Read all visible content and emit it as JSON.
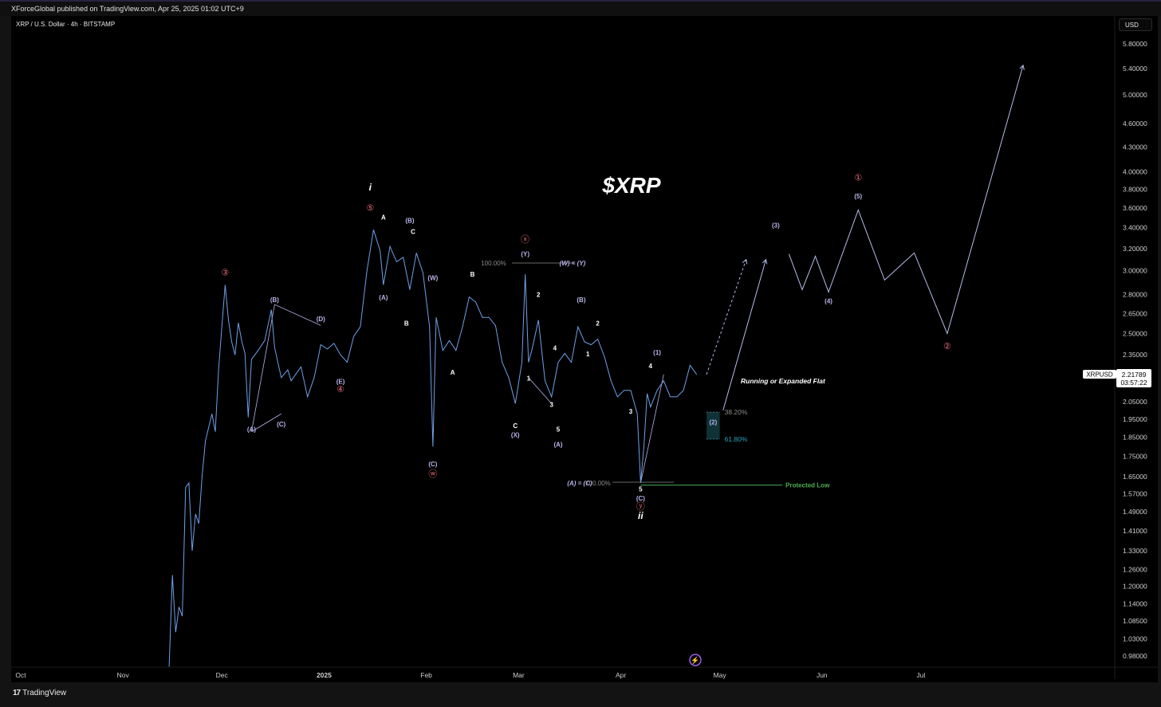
{
  "header": {
    "published": "XForceGlobal published on TradingView.com, Apr 25, 2025 01:02 UTC+9",
    "symbol": "XRP / U.S. Dollar · 4h · BITSTAMP",
    "currency": "USD"
  },
  "footer": {
    "logo_mark": "17",
    "brand": "TradingView"
  },
  "annotations": {
    "main_title": "$XRP",
    "flat_note": "Running or Expanded Flat",
    "protected_low": "Protected Low",
    "ratio_ab": "(A) = (C)",
    "ratio_wy": "(W) = (Y)",
    "fib_382": "38.20%",
    "fib_618": "61.80%",
    "fib_100_top": "100.00%",
    "fib_100_bottom": "100.00%",
    "symbol_tag": "XRPUSD",
    "last_price": "2.21789",
    "countdown": "03:57:22"
  },
  "colors": {
    "background": "#000000",
    "price_line": "#6fa0e8",
    "projection": "#b4bce8",
    "wave_label": "#b8b5ea",
    "primary_label": "#ffffff",
    "circle_label": "#e86d78",
    "protected": "#4caf50",
    "fib_zone": "#0f3236",
    "fib_text_618": "#26a3b8",
    "fib_text_382": "#8a8a8a"
  },
  "chart_data": {
    "type": "line",
    "title": "$XRP",
    "xlabel": "",
    "ylabel": "",
    "y_scale": "log",
    "ylim": [
      0.95,
      6.2
    ],
    "x_ticks": [
      "Oct",
      "Nov",
      "Dec",
      "2025",
      "Feb",
      "Mar",
      "Apr",
      "May",
      "Jun",
      "Jul"
    ],
    "y_ticks": [
      "5.80000",
      "5.40000",
      "5.00000",
      "4.60000",
      "4.30000",
      "4.00000",
      "3.80000",
      "3.60000",
      "3.40000",
      "3.20000",
      "3.00000",
      "2.80000",
      "2.65000",
      "2.50000",
      "2.35000",
      "2.21789",
      "2.05000",
      "1.95000",
      "1.85000",
      "1.75000",
      "1.65000",
      "1.57000",
      "1.49000",
      "1.41000",
      "1.33000",
      "1.26000",
      "1.20000",
      "1.14000",
      "1.08500",
      "1.03000",
      "0.98000"
    ],
    "series": [
      {
        "values": [
          [
            "2024-11-15",
            0.95
          ],
          [
            "2024-11-16",
            1.24
          ],
          [
            "2024-11-17",
            1.05
          ],
          [
            "2024-11-18",
            1.13
          ],
          [
            "2024-11-19",
            1.1
          ],
          [
            "2024-11-20",
            1.6
          ],
          [
            "2024-11-21",
            1.62
          ],
          [
            "2024-11-22",
            1.33
          ],
          [
            "2024-11-23",
            1.48
          ],
          [
            "2024-11-24",
            1.44
          ],
          [
            "2024-11-25",
            1.65
          ],
          [
            "2024-11-26",
            1.83
          ],
          [
            "2024-11-28",
            1.98
          ],
          [
            "2024-11-29",
            1.88
          ],
          [
            "2024-11-30",
            2.25
          ],
          [
            "2024-12-01",
            2.55
          ],
          [
            "2024-12-02",
            2.88
          ],
          [
            "2024-12-03",
            2.6
          ],
          [
            "2024-12-04",
            2.44
          ],
          [
            "2024-12-05",
            2.35
          ],
          [
            "2024-12-06",
            2.58
          ],
          [
            "2024-12-07",
            2.45
          ],
          [
            "2024-12-08",
            2.36
          ],
          [
            "2024-12-09",
            1.96
          ],
          [
            "2024-12-10",
            2.32
          ],
          [
            "2024-12-12",
            2.38
          ],
          [
            "2024-12-14",
            2.45
          ],
          [
            "2024-12-16",
            2.68
          ],
          [
            "2024-12-17",
            2.4
          ],
          [
            "2024-12-19",
            2.2
          ],
          [
            "2024-12-21",
            2.25
          ],
          [
            "2024-12-22",
            2.18
          ],
          [
            "2024-12-25",
            2.27
          ],
          [
            "2024-12-27",
            2.08
          ],
          [
            "2024-12-29",
            2.2
          ],
          [
            "2024-12-31",
            2.42
          ],
          [
            "2025-01-02",
            2.39
          ],
          [
            "2025-01-04",
            2.43
          ],
          [
            "2025-01-06",
            2.35
          ],
          [
            "2025-01-08",
            2.3
          ],
          [
            "2025-01-10",
            2.48
          ],
          [
            "2025-01-12",
            2.55
          ],
          [
            "2025-01-14",
            3.0
          ],
          [
            "2025-01-16",
            3.38
          ],
          [
            "2025-01-18",
            3.18
          ],
          [
            "2025-01-19",
            2.88
          ],
          [
            "2025-01-21",
            3.22
          ],
          [
            "2025-01-23",
            3.08
          ],
          [
            "2025-01-25",
            3.12
          ],
          [
            "2025-01-27",
            2.84
          ],
          [
            "2025-01-29",
            3.16
          ],
          [
            "2025-01-31",
            2.98
          ],
          [
            "2025-02-02",
            2.55
          ],
          [
            "2025-02-03",
            1.8
          ],
          [
            "2025-02-04",
            2.62
          ],
          [
            "2025-02-06",
            2.38
          ],
          [
            "2025-02-08",
            2.45
          ],
          [
            "2025-02-10",
            2.38
          ],
          [
            "2025-02-12",
            2.55
          ],
          [
            "2025-02-14",
            2.78
          ],
          [
            "2025-02-16",
            2.74
          ],
          [
            "2025-02-18",
            2.62
          ],
          [
            "2025-02-20",
            2.62
          ],
          [
            "2025-02-22",
            2.56
          ],
          [
            "2025-02-24",
            2.3
          ],
          [
            "2025-02-26",
            2.2
          ],
          [
            "2025-02-28",
            2.04
          ],
          [
            "2025-03-02",
            2.3
          ],
          [
            "2025-03-03",
            2.97
          ],
          [
            "2025-03-04",
            2.3
          ],
          [
            "2025-03-05",
            2.38
          ],
          [
            "2025-03-07",
            2.6
          ],
          [
            "2025-03-09",
            2.18
          ],
          [
            "2025-03-11",
            2.08
          ],
          [
            "2025-03-13",
            2.3
          ],
          [
            "2025-03-15",
            2.36
          ],
          [
            "2025-03-17",
            2.3
          ],
          [
            "2025-03-19",
            2.55
          ],
          [
            "2025-03-21",
            2.44
          ],
          [
            "2025-03-23",
            2.42
          ],
          [
            "2025-03-25",
            2.46
          ],
          [
            "2025-03-27",
            2.34
          ],
          [
            "2025-03-29",
            2.18
          ],
          [
            "2025-03-31",
            2.08
          ],
          [
            "2025-04-02",
            2.12
          ],
          [
            "2025-04-04",
            2.12
          ],
          [
            "2025-04-06",
            1.98
          ],
          [
            "2025-04-07",
            1.62
          ],
          [
            "2025-04-08",
            1.8
          ],
          [
            "2025-04-09",
            2.1
          ],
          [
            "2025-04-10",
            2.02
          ],
          [
            "2025-04-12",
            2.12
          ],
          [
            "2025-04-14",
            2.18
          ],
          [
            "2025-04-16",
            2.08
          ],
          [
            "2025-04-18",
            2.08
          ],
          [
            "2025-04-20",
            2.12
          ],
          [
            "2025-04-22",
            2.28
          ],
          [
            "2025-04-24",
            2.22
          ]
        ]
      }
    ],
    "projections": {
      "dashed_path": [
        [
          "2025-04-27",
          2.22
        ],
        [
          "2025-05-09",
          3.1
        ]
      ],
      "solid_path": [
        [
          "2025-05-02",
          2.0
        ],
        [
          "2025-05-15",
          3.1
        ]
      ],
      "future_path": [
        [
          "2025-05-22",
          3.15
        ],
        [
          "2025-05-26",
          2.84
        ],
        [
          "2025-05-30",
          3.13
        ],
        [
          "2025-06-03",
          2.82
        ],
        [
          "2025-06-12",
          3.58
        ],
        [
          "2025-06-20",
          2.92
        ],
        [
          "2025-06-29",
          3.16
        ],
        [
          "2025-07-09",
          2.5
        ],
        [
          "2025-08-01",
          5.45
        ]
      ]
    },
    "fib_zone": {
      "x_start": "2025-04-27",
      "x_end": "2025-05-01",
      "top": 1.99,
      "bottom": 1.84,
      "label_382": "38.20%",
      "label_618": "61.80%"
    },
    "protected_low": {
      "x_start": "2025-04-07",
      "x_end": "2025-05-20",
      "y": 1.61
    },
    "wave_labels": [
      {
        "t": "③",
        "x": "2024-12-02",
        "y": 2.96,
        "kind": "circle"
      },
      {
        "t": "(A)",
        "x": "2024-12-10",
        "y": 1.88,
        "kind": "wave"
      },
      {
        "t": "(B)",
        "x": "2024-12-17",
        "y": 2.74,
        "kind": "wave"
      },
      {
        "t": "(C)",
        "x": "2024-12-19",
        "y": 1.91,
        "kind": "wave"
      },
      {
        "t": "(D)",
        "x": "2024-12-31",
        "y": 2.59,
        "kind": "wave"
      },
      {
        "t": "(E)",
        "x": "2025-01-06",
        "y": 2.16,
        "kind": "wave"
      },
      {
        "t": "④",
        "x": "2025-01-06",
        "y": 2.11,
        "kind": "circle"
      },
      {
        "t": "i",
        "x": "2025-01-15",
        "y": 3.79,
        "kind": "primary_italic"
      },
      {
        "t": "⑤",
        "x": "2025-01-15",
        "y": 3.57,
        "kind": "circle"
      },
      {
        "t": "A",
        "x": "2025-01-19",
        "y": 3.48,
        "kind": "white"
      },
      {
        "t": "(A)",
        "x": "2025-01-19",
        "y": 2.76,
        "kind": "wave"
      },
      {
        "t": "(B)",
        "x": "2025-01-27",
        "y": 3.45,
        "kind": "wave"
      },
      {
        "t": "C",
        "x": "2025-01-28",
        "y": 3.34,
        "kind": "white"
      },
      {
        "t": "B",
        "x": "2025-01-26",
        "y": 2.56,
        "kind": "white"
      },
      {
        "t": "(W)",
        "x": "2025-02-03",
        "y": 2.92,
        "kind": "wave"
      },
      {
        "t": "(C)",
        "x": "2025-02-03",
        "y": 1.7,
        "kind": "wave"
      },
      {
        "t": "ⓦ",
        "x": "2025-02-03",
        "y": 1.65,
        "kind": "circle"
      },
      {
        "t": "A",
        "x": "2025-02-09",
        "y": 2.22,
        "kind": "white"
      },
      {
        "t": "B",
        "x": "2025-02-15",
        "y": 2.95,
        "kind": "white"
      },
      {
        "t": "C",
        "x": "2025-02-28",
        "y": 1.9,
        "kind": "white"
      },
      {
        "t": "(X)",
        "x": "2025-02-28",
        "y": 1.85,
        "kind": "wave"
      },
      {
        "t": "ⓧ",
        "x": "2025-03-03",
        "y": 3.26,
        "kind": "circle"
      },
      {
        "t": "(Y)",
        "x": "2025-03-03",
        "y": 3.13,
        "kind": "wave"
      },
      {
        "t": "2",
        "x": "2025-03-07",
        "y": 2.78,
        "kind": "white"
      },
      {
        "t": "1",
        "x": "2025-03-04",
        "y": 2.18,
        "kind": "white"
      },
      {
        "t": "4",
        "x": "2025-03-12",
        "y": 2.38,
        "kind": "white"
      },
      {
        "t": "3",
        "x": "2025-03-11",
        "y": 2.02,
        "kind": "white"
      },
      {
        "t": "5",
        "x": "2025-03-13",
        "y": 1.88,
        "kind": "white"
      },
      {
        "t": "(A)",
        "x": "2025-03-13",
        "y": 1.8,
        "kind": "wave"
      },
      {
        "t": "(B)",
        "x": "2025-03-20",
        "y": 2.74,
        "kind": "wave"
      },
      {
        "t": "2",
        "x": "2025-03-25",
        "y": 2.56,
        "kind": "white"
      },
      {
        "t": "1",
        "x": "2025-03-22",
        "y": 2.34,
        "kind": "white"
      },
      {
        "t": "4",
        "x": "2025-04-10",
        "y": 2.26,
        "kind": "white"
      },
      {
        "t": "3",
        "x": "2025-04-04",
        "y": 1.98,
        "kind": "white"
      },
      {
        "t": "(1)",
        "x": "2025-04-12",
        "y": 2.35,
        "kind": "wave"
      },
      {
        "t": "5",
        "x": "2025-04-07",
        "y": 1.58,
        "kind": "white"
      },
      {
        "t": "(C)",
        "x": "2025-04-07",
        "y": 1.54,
        "kind": "wave"
      },
      {
        "t": "ⓨ",
        "x": "2025-04-07",
        "y": 1.5,
        "kind": "circle"
      },
      {
        "t": "ii",
        "x": "2025-04-07",
        "y": 1.46,
        "kind": "primary_italic"
      },
      {
        "t": "(2)",
        "x": "2025-04-29",
        "y": 1.92,
        "kind": "wave"
      },
      {
        "t": "(3)",
        "x": "2025-05-18",
        "y": 3.4,
        "kind": "wave"
      },
      {
        "t": "(4)",
        "x": "2025-06-03",
        "y": 2.73,
        "kind": "wave"
      },
      {
        "t": "①",
        "x": "2025-06-12",
        "y": 3.9,
        "kind": "circle"
      },
      {
        "t": "(5)",
        "x": "2025-06-12",
        "y": 3.7,
        "kind": "wave"
      },
      {
        "t": "②",
        "x": "2025-07-09",
        "y": 2.39,
        "kind": "circle"
      }
    ]
  }
}
